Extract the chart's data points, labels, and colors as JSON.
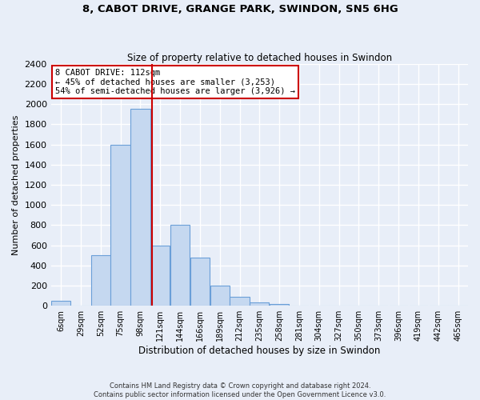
{
  "title_line1": "8, CABOT DRIVE, GRANGE PARK, SWINDON, SN5 6HG",
  "title_line2": "Size of property relative to detached houses in Swindon",
  "xlabel": "Distribution of detached houses by size in Swindon",
  "ylabel": "Number of detached properties",
  "bin_labels": [
    "6sqm",
    "29sqm",
    "52sqm",
    "75sqm",
    "98sqm",
    "121sqm",
    "144sqm",
    "166sqm",
    "189sqm",
    "212sqm",
    "235sqm",
    "258sqm",
    "281sqm",
    "304sqm",
    "327sqm",
    "350sqm",
    "373sqm",
    "396sqm",
    "419sqm",
    "442sqm",
    "465sqm"
  ],
  "bar_values": [
    50,
    0,
    500,
    1600,
    1950,
    600,
    800,
    480,
    200,
    90,
    30,
    20,
    5,
    5,
    0,
    0,
    0,
    0,
    5,
    0,
    0
  ],
  "bar_color": "#c5d8f0",
  "bar_edge_color": "#6a9fd8",
  "vline_x_index": 4,
  "vline_color": "#cc0000",
  "ylim": [
    0,
    2400
  ],
  "yticks": [
    0,
    200,
    400,
    600,
    800,
    1000,
    1200,
    1400,
    1600,
    1800,
    2000,
    2200,
    2400
  ],
  "annotation_title": "8 CABOT DRIVE: 112sqm",
  "annotation_line1": "← 45% of detached houses are smaller (3,253)",
  "annotation_line2": "54% of semi-detached houses are larger (3,926) →",
  "annotation_box_color": "#ffffff",
  "annotation_border_color": "#cc0000",
  "footer_line1": "Contains HM Land Registry data © Crown copyright and database right 2024.",
  "footer_line2": "Contains public sector information licensed under the Open Government Licence v3.0.",
  "bg_color": "#e8eef8",
  "plot_bg_color": "#e8eef8",
  "grid_color": "#ffffff"
}
